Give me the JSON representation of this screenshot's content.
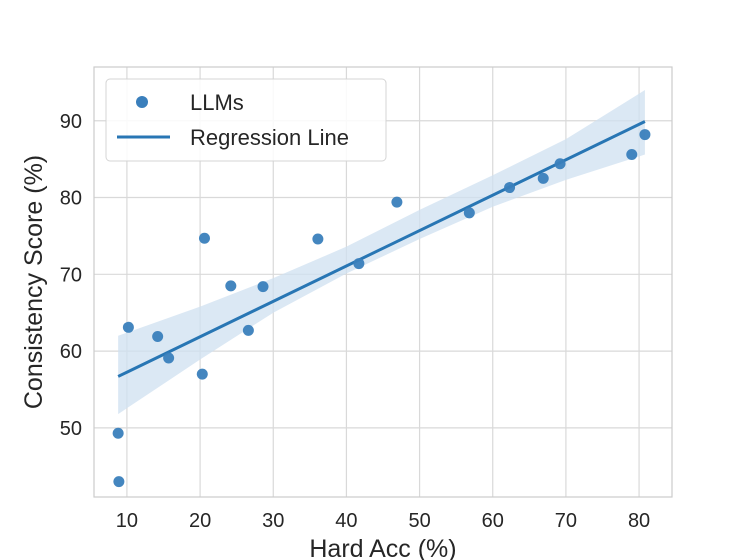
{
  "chart_data": {
    "type": "scatter",
    "title": "",
    "xlabel": "Hard Acc (%)",
    "ylabel": "Consistency Score (%)",
    "xlim": [
      5.5,
      84.5
    ],
    "ylim": [
      41,
      97
    ],
    "xticks": [
      10,
      20,
      30,
      40,
      50,
      60,
      70,
      80
    ],
    "yticks": [
      50,
      60,
      70,
      80,
      90
    ],
    "grid": true,
    "legend_position": "top-left",
    "colors": {
      "points": "#3a7fbc",
      "line": "#2876b4",
      "band": "#cfe0f0"
    },
    "series": [
      {
        "name": "LLMs",
        "kind": "scatter",
        "points": [
          {
            "x": 8.8,
            "y": 49.3
          },
          {
            "x": 8.9,
            "y": 43.0
          },
          {
            "x": 10.2,
            "y": 63.1
          },
          {
            "x": 14.2,
            "y": 61.9
          },
          {
            "x": 15.7,
            "y": 59.1
          },
          {
            "x": 20.3,
            "y": 57.0
          },
          {
            "x": 20.6,
            "y": 74.7
          },
          {
            "x": 24.2,
            "y": 68.5
          },
          {
            "x": 26.6,
            "y": 62.7
          },
          {
            "x": 28.6,
            "y": 68.4
          },
          {
            "x": 36.1,
            "y": 74.6
          },
          {
            "x": 41.7,
            "y": 71.4
          },
          {
            "x": 46.9,
            "y": 79.4
          },
          {
            "x": 56.8,
            "y": 78.0
          },
          {
            "x": 62.3,
            "y": 81.3
          },
          {
            "x": 66.9,
            "y": 82.5
          },
          {
            "x": 69.2,
            "y": 84.4
          },
          {
            "x": 79.0,
            "y": 85.6
          },
          {
            "x": 80.8,
            "y": 88.2
          }
        ]
      },
      {
        "name": "Regression Line",
        "kind": "line",
        "x": [
          8.8,
          80.8
        ],
        "y": [
          56.7,
          89.9
        ],
        "ci_lower": [
          {
            "x": 8.8,
            "y": 51.8
          },
          {
            "x": 20,
            "y": 58.9
          },
          {
            "x": 30,
            "y": 65.0
          },
          {
            "x": 40,
            "y": 70.1
          },
          {
            "x": 50,
            "y": 74.6
          },
          {
            "x": 60,
            "y": 78.8
          },
          {
            "x": 70,
            "y": 82.3
          },
          {
            "x": 80.8,
            "y": 85.6
          }
        ],
        "ci_upper": [
          {
            "x": 8.8,
            "y": 62.0
          },
          {
            "x": 20,
            "y": 65.8
          },
          {
            "x": 30,
            "y": 69.5
          },
          {
            "x": 40,
            "y": 73.6
          },
          {
            "x": 50,
            "y": 78.4
          },
          {
            "x": 60,
            "y": 82.9
          },
          {
            "x": 70,
            "y": 87.6
          },
          {
            "x": 80.8,
            "y": 94.0
          }
        ]
      }
    ]
  }
}
